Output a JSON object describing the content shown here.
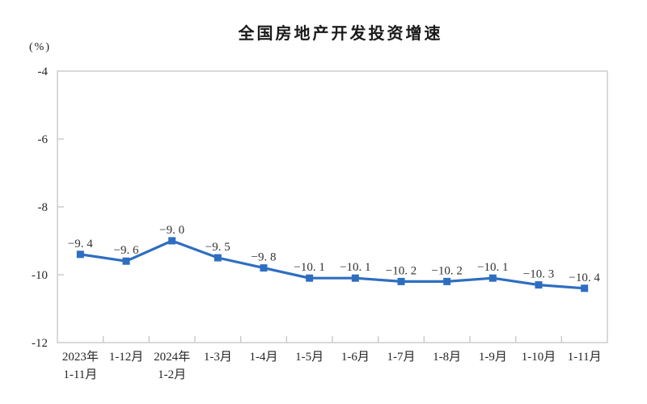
{
  "chart_data": {
    "type": "line",
    "title": "全国房地产开发投资增速",
    "unit_label": "(%)",
    "xlabel": "",
    "ylabel": "(%)",
    "ylim": [
      -12,
      -4
    ],
    "yticks": [
      -4,
      -6,
      -8,
      -10,
      -12
    ],
    "ytick_labels": [
      "-4",
      "-6",
      "-8",
      "-10",
      "-12"
    ],
    "grid": false,
    "legend": "none",
    "categories": [
      [
        "2023年",
        "1-11月"
      ],
      [
        "1-12月"
      ],
      [
        "2024年",
        "1-2月"
      ],
      [
        "1-3月"
      ],
      [
        "1-4月"
      ],
      [
        "1-5月"
      ],
      [
        "1-6月"
      ],
      [
        "1-7月"
      ],
      [
        "1-8月"
      ],
      [
        "1-9月"
      ],
      [
        "1-10月"
      ],
      [
        "1-11月"
      ]
    ],
    "series": [
      {
        "name": "全国房地产开发投资增速",
        "values": [
          -9.4,
          -9.6,
          -9.0,
          -9.5,
          -9.8,
          -10.1,
          -10.1,
          -10.2,
          -10.2,
          -10.1,
          -10.3,
          -10.4
        ],
        "labels": [
          "−9. 4",
          "−9. 6",
          "−9. 0",
          "−9. 5",
          "−9. 8",
          "−10. 1",
          "−10. 1",
          "−10. 2",
          "−10. 2",
          "−10. 1",
          "−10. 3",
          "−10. 4"
        ],
        "marker": "square"
      }
    ],
    "colors": {
      "line": "#2E6EC0",
      "marker": "#2E6EC0",
      "axis": "#C9C9C9",
      "data_label": "#333333",
      "tick_text": "#262626",
      "title_text": "#1A1A1A",
      "background": "#FFFFFF"
    }
  }
}
